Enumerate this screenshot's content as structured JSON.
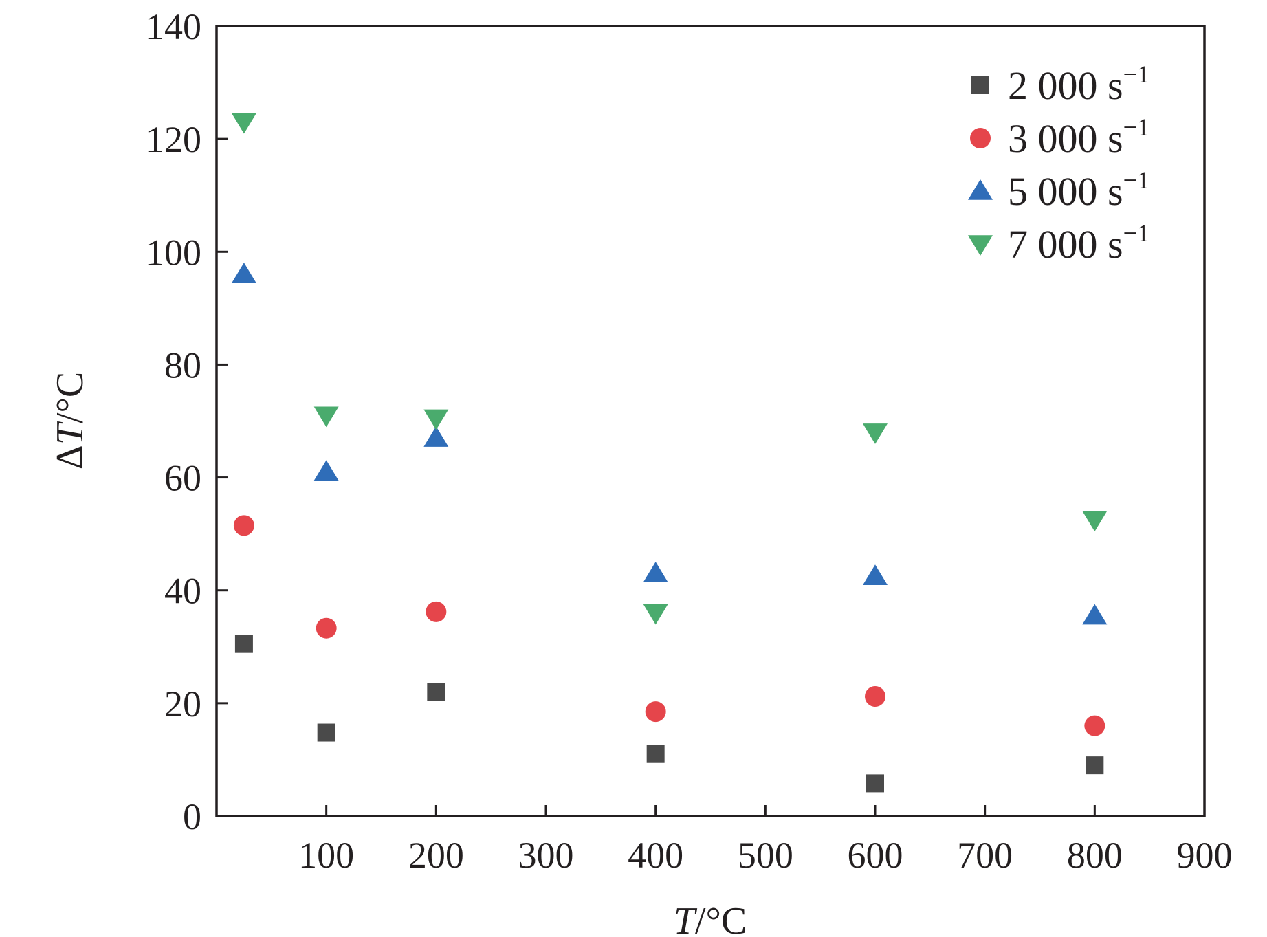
{
  "chart_data": {
    "type": "scatter",
    "xlabel": "T/°C",
    "xlabel_italic": "T",
    "xlabel_unit": "/°C",
    "ylabel": "ΔT/°C",
    "ylabel_prefix": "Δ",
    "ylabel_italic": "T",
    "ylabel_unit": "/°C",
    "xlim": [
      0,
      900
    ],
    "ylim": [
      0,
      140
    ],
    "x_ticks": [
      100,
      200,
      300,
      400,
      500,
      600,
      700,
      800,
      900
    ],
    "y_ticks": [
      0,
      20,
      40,
      60,
      80,
      100,
      120,
      140
    ],
    "grid": false,
    "legend_position": "top-right",
    "series": [
      {
        "name": "2 000 s⁻¹",
        "label_main": "2 000 s",
        "label_sup": "−1",
        "marker": "square",
        "color": "#4a4a4a",
        "x": [
          25,
          100,
          200,
          400,
          600,
          800
        ],
        "y": [
          30.5,
          14.8,
          22,
          11,
          5.8,
          9
        ]
      },
      {
        "name": "3 000 s⁻¹",
        "label_main": "3 000 s",
        "label_sup": "−1",
        "marker": "circle",
        "color": "#e5454b",
        "x": [
          25,
          100,
          200,
          400,
          600,
          800
        ],
        "y": [
          51.5,
          33.3,
          36.2,
          18.5,
          21.2,
          16
        ]
      },
      {
        "name": "5 000 s⁻¹",
        "label_main": "5 000 s",
        "label_sup": "−1",
        "marker": "triangle-up",
        "color": "#2f6db8",
        "x": [
          25,
          100,
          200,
          400,
          600,
          800
        ],
        "y": [
          96,
          61,
          67,
          43,
          42.5,
          35.5
        ]
      },
      {
        "name": "7 000 s⁻¹",
        "label_main": "7 000 s",
        "label_sup": "−1",
        "marker": "triangle-down",
        "color": "#4aab6d",
        "x": [
          25,
          100,
          200,
          400,
          600,
          800
        ],
        "y": [
          123,
          71,
          70.5,
          36,
          68,
          52.5
        ]
      }
    ]
  }
}
